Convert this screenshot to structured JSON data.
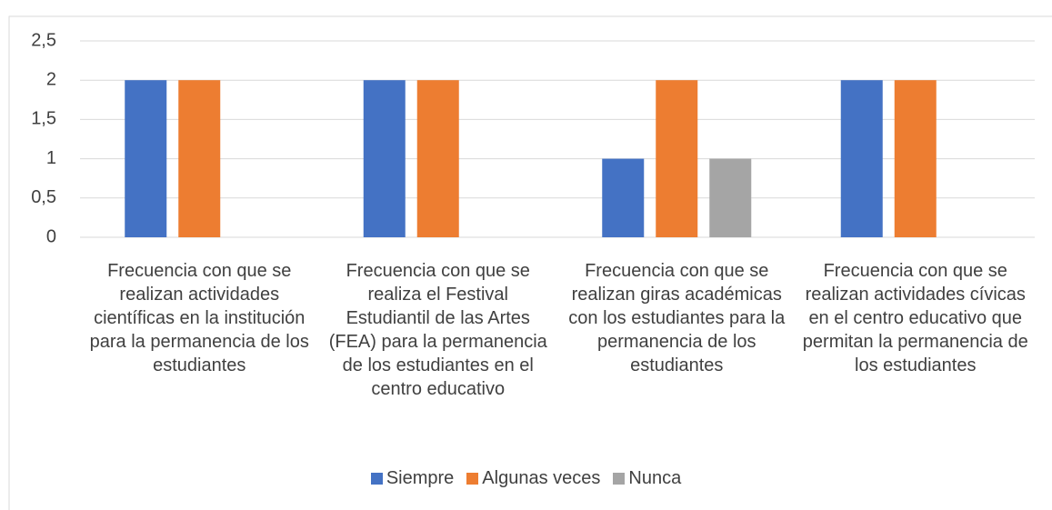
{
  "chart_data": {
    "type": "bar",
    "categories": [
      "Frecuencia con que se realizan actividades científicas en la institución para la permanencia de los estudiantes",
      "Frecuencia con que se realiza el Festival Estudiantil de las Artes (FEA) para la permanencia de los estudiantes en el centro educativo",
      "Frecuencia con que se realizan giras académicas con los estudiantes para la permanencia de los estudiantes",
      "Frecuencia con que se realizan actividades cívicas en el centro educativo que permitan la permanencia de los estudiantes"
    ],
    "series": [
      {
        "name": "Siempre",
        "color": "#4472c4",
        "values": [
          2,
          2,
          1,
          2
        ]
      },
      {
        "name": "Algunas veces",
        "color": "#ed7d31",
        "values": [
          2,
          2,
          2,
          2
        ]
      },
      {
        "name": "Nunca",
        "color": "#a5a5a5",
        "values": [
          0,
          0,
          1,
          0
        ]
      }
    ],
    "ylim": [
      0,
      2.5
    ],
    "yticks": [
      0,
      {
        "value": 0.5,
        "label": "0,5"
      },
      1,
      {
        "value": 1.5,
        "label": "1,5"
      },
      2,
      {
        "value": 2.5,
        "label": "2,5"
      }
    ],
    "grid": true,
    "legend": "bottom"
  }
}
